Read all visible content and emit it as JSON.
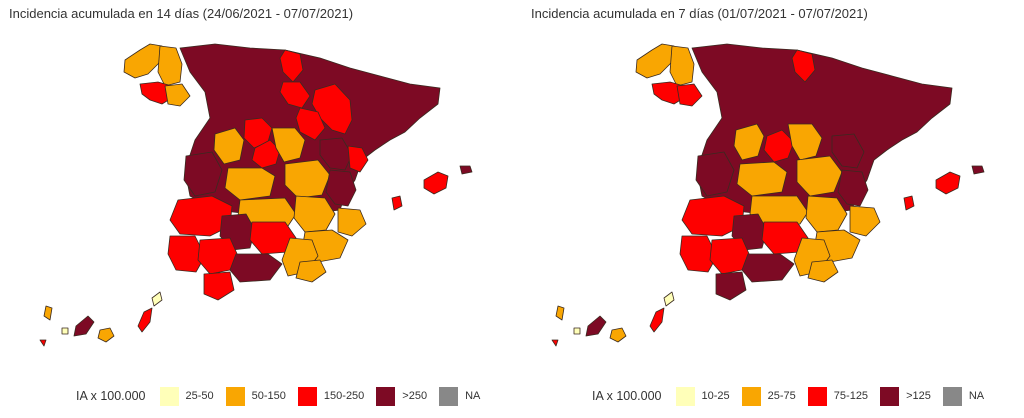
{
  "colors": {
    "c1": "#ffffb9",
    "c2": "#f9a602",
    "c3": "#fe0000",
    "c4": "#7d0a24",
    "na": "#888888"
  },
  "left": {
    "title": "Incidencia acumulada en 14 días (24/06/2021 - 07/07/2021)",
    "legend_title": "IA x 100.000",
    "legend": [
      {
        "label": "25-50",
        "color": "#ffffb9"
      },
      {
        "label": "50-150",
        "color": "#f9a602"
      },
      {
        "label": "150-250",
        "color": "#fe0000"
      },
      {
        "label": ">250",
        "color": "#7d0a24"
      },
      {
        "label": "NA",
        "color": "#888888"
      }
    ]
  },
  "right": {
    "title": "Incidencia acumulada en 7 días (01/07/2021 - 07/07/2021)",
    "legend_title": "IA x 100.000",
    "legend": [
      {
        "label": "10-25",
        "color": "#ffffb9"
      },
      {
        "label": "25-75",
        "color": "#f9a602"
      },
      {
        "label": "75-125",
        "color": "#fe0000"
      },
      {
        "label": ">125",
        "color": "#7d0a24"
      },
      {
        "label": "NA",
        "color": "#888888"
      }
    ]
  }
}
